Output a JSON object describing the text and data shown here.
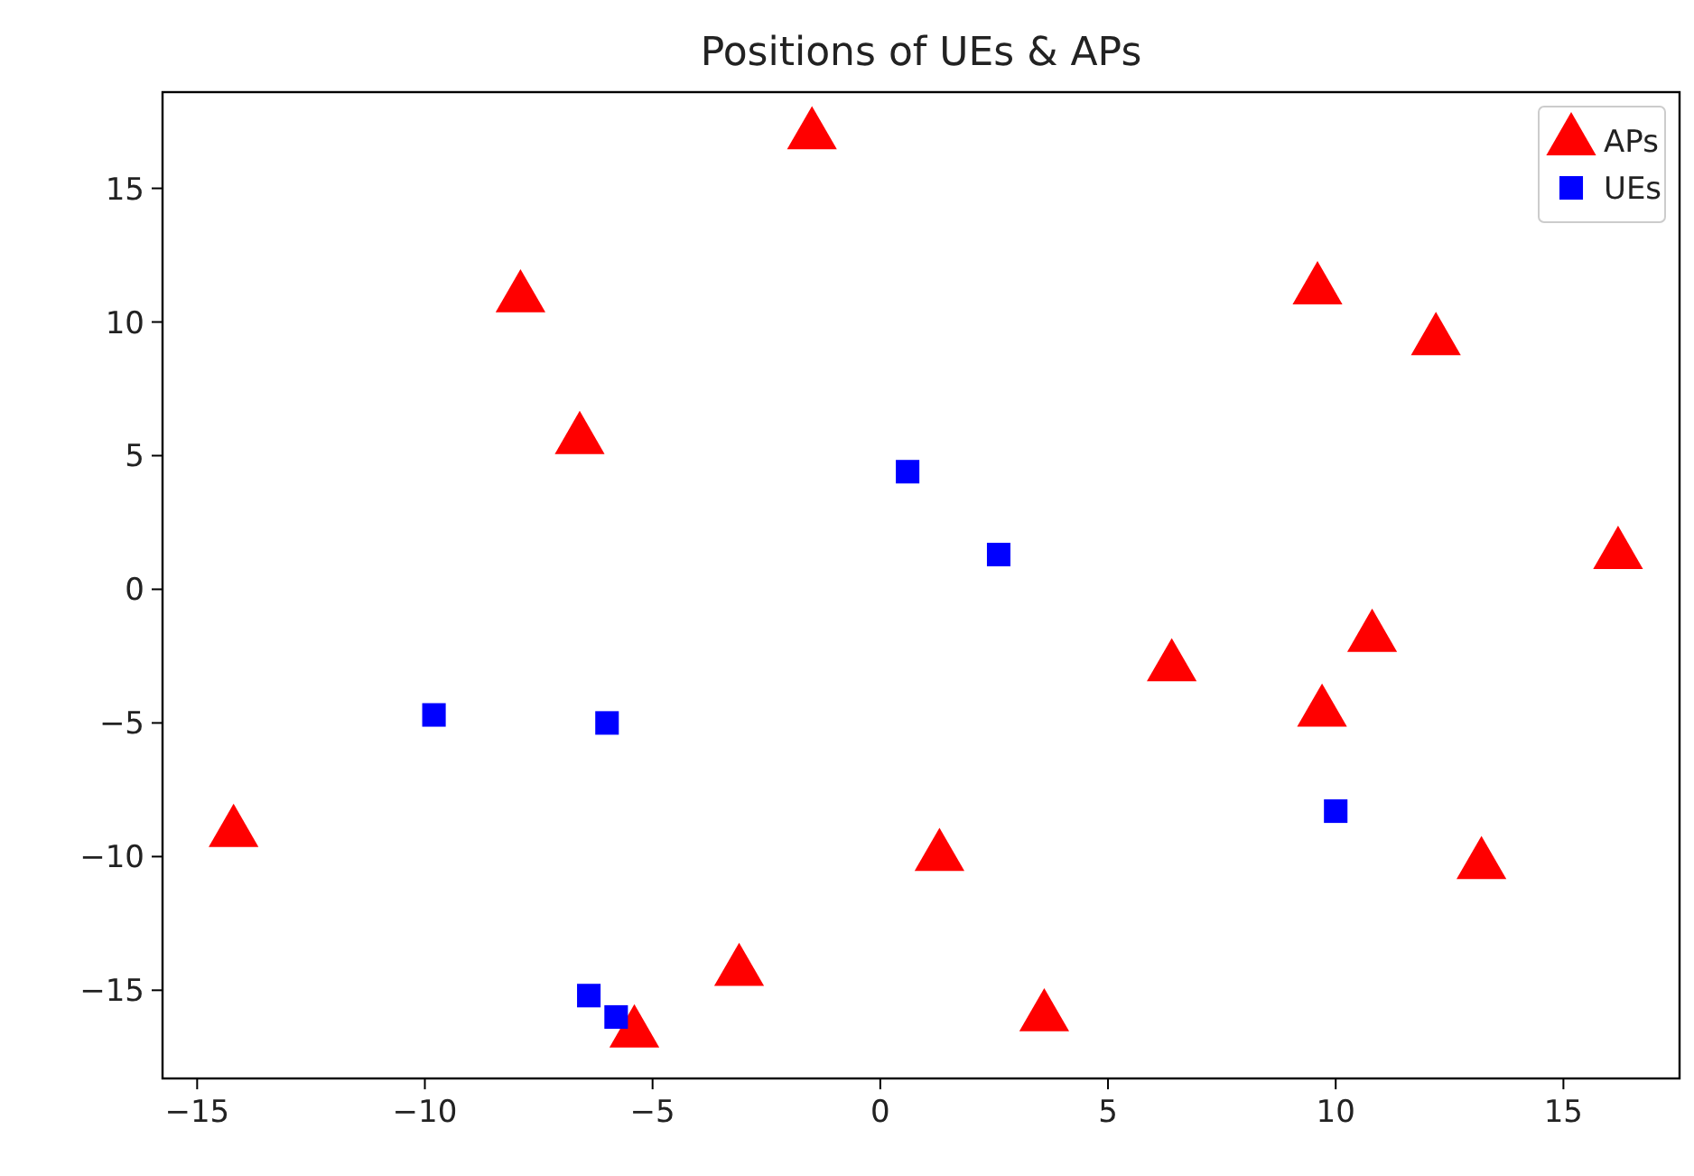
{
  "chart_data": {
    "type": "scatter",
    "title": "Positions of UEs & APs",
    "xlim": [
      -15.76,
      17.55
    ],
    "ylim": [
      -18.3,
      18.6
    ],
    "xticks": [
      -15,
      -10,
      -5,
      0,
      5,
      10,
      15
    ],
    "yticks": [
      -15,
      -10,
      -5,
      0,
      5,
      10,
      15
    ],
    "grid": false,
    "legend": "top right",
    "series": [
      {
        "name": "APs",
        "color": "#ff0000",
        "marker": "triangle",
        "x": [
          -1.5,
          -7.9,
          -6.6,
          9.6,
          12.2,
          16.2,
          10.8,
          6.4,
          9.7,
          -14.2,
          1.3,
          13.2,
          -3.1,
          3.6,
          -5.4
        ],
        "values": [
          17.0,
          10.9,
          5.6,
          11.2,
          9.3,
          1.3,
          -1.8,
          -2.9,
          -4.6,
          -9.1,
          -10.0,
          -10.3,
          -14.3,
          -16.0,
          -16.6
        ]
      },
      {
        "name": "UEs",
        "color": "#0000ff",
        "marker": "square",
        "x": [
          0.6,
          2.6,
          -9.8,
          -6.0,
          10.0,
          -6.4,
          -5.8
        ],
        "values": [
          4.4,
          1.3,
          -4.7,
          -5.0,
          -8.3,
          -15.2,
          -16.0
        ]
      }
    ]
  }
}
